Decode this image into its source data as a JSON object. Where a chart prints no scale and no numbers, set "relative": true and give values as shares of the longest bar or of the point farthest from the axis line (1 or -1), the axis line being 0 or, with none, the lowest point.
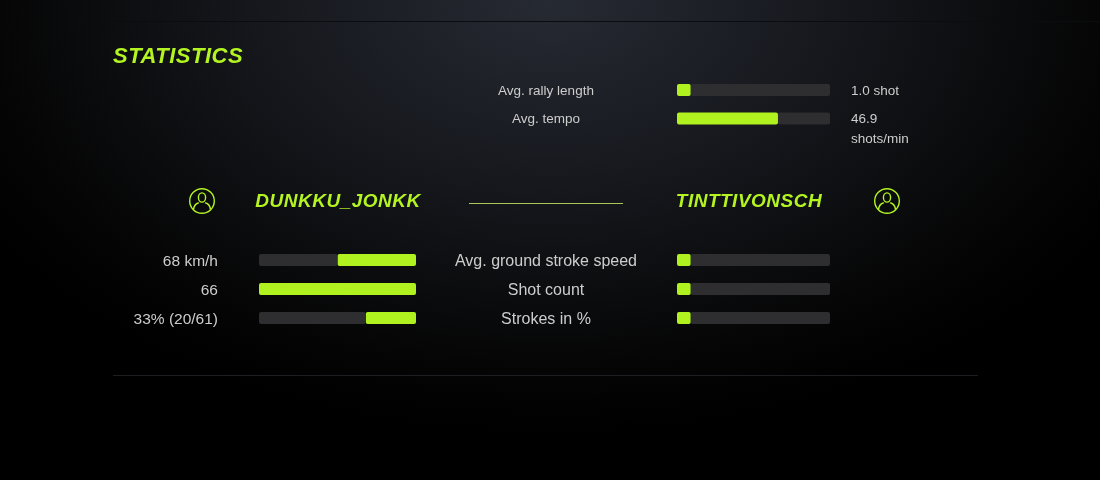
{
  "chart_data": [
    {
      "type": "other",
      "title": "STATISTICS"
    },
    {
      "type": "bar",
      "orientation": "horizontal",
      "stacked": true,
      "relative": true,
      "categories": [
        "Avg. rally length",
        "Avg. tempo"
      ],
      "series": [
        {
          "color": "#b0f21f",
          "values": [
            0.09,
            0.66
          ]
        },
        {
          "color": "#2e2d2f",
          "values": [
            0.91,
            0.34
          ]
        }
      ],
      "annotations": [
        "1.0 shot",
        "46.9 shots/min"
      ]
    },
    {
      "type": "bar",
      "orientation": "horizontal",
      "stacked": true,
      "relative": true,
      "title": "DUNKKU_JONKK",
      "categories": [
        null,
        null,
        null
      ],
      "series": [
        {
          "color": "#b0f21f",
          "values": [
            -0.5,
            -1,
            -0.32
          ]
        },
        {
          "color": "#2e2d2f",
          "values": [
            -0.5,
            0,
            -0.68
          ]
        }
      ],
      "annotations": [
        "68 km/h",
        "66",
        "33% (20/61)"
      ]
    },
    {
      "type": "bar",
      "orientation": "horizontal",
      "stacked": true,
      "relative": true,
      "title": "TINTTIVONSCH",
      "categories": [
        "Avg. ground stroke speed",
        "Shot count",
        "Strokes in %"
      ],
      "series": [
        {
          "color": "#b0f21f",
          "values": [
            0.09,
            0.09,
            0.09
          ]
        },
        {
          "color": "#2e2d2f",
          "values": [
            0.91,
            0.91,
            0.91
          ]
        }
      ]
    }
  ]
}
